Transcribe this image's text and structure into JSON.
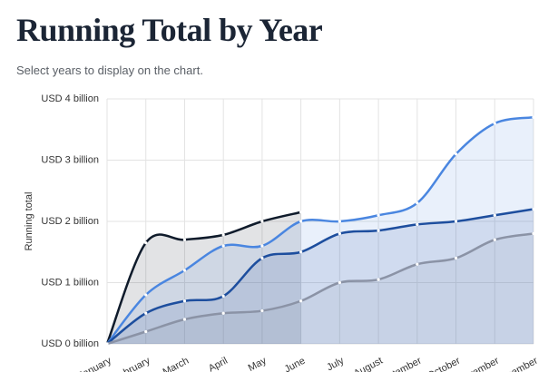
{
  "chart_data": {
    "type": "area",
    "title": "Running Total by Year",
    "subtitle": "Select years to display on the chart.",
    "y_label": "Running total",
    "categories": [
      "January",
      "February",
      "March",
      "April",
      "May",
      "June",
      "July",
      "August",
      "September",
      "October",
      "November",
      "December"
    ],
    "ylim": [
      0,
      4
    ],
    "yticks": [
      {
        "value": 0,
        "label": "USD 0 billion"
      },
      {
        "value": 1,
        "label": "USD 1 billion"
      },
      {
        "value": 2,
        "label": "USD 2 billion"
      },
      {
        "value": 3,
        "label": "USD 3 billion"
      },
      {
        "value": 4,
        "label": "USD 4 billion"
      }
    ],
    "grid": true,
    "series": [
      {
        "color": "#0f1b2b",
        "values": [
          0,
          1.65,
          1.7,
          1.78,
          2.0,
          2.15,
          null,
          null,
          null,
          null,
          null,
          null
        ]
      },
      {
        "color": "#4a86e0",
        "values": [
          0,
          0.8,
          1.2,
          1.6,
          1.6,
          2.0,
          2.0,
          2.1,
          2.3,
          3.1,
          3.6,
          3.7
        ]
      },
      {
        "color": "#1d4e9e",
        "values": [
          0,
          0.5,
          0.7,
          0.78,
          1.4,
          1.5,
          1.8,
          1.85,
          1.95,
          2.0,
          2.1,
          2.2
        ]
      },
      {
        "color": "#8b93a6",
        "values": [
          0,
          0.2,
          0.4,
          0.5,
          0.54,
          0.7,
          1.0,
          1.05,
          1.3,
          1.4,
          1.7,
          1.8
        ]
      }
    ]
  }
}
